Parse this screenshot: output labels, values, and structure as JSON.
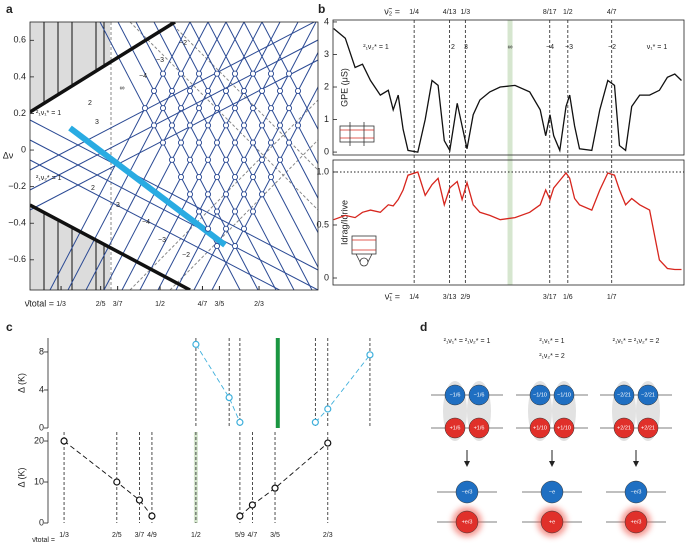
{
  "panels": [
    "a",
    "b",
    "c",
    "d"
  ],
  "chart_data": [
    {
      "type": "phase",
      "ylabel": "Δν",
      "xlabel": "ν̄total =",
      "xlim": [
        0.281,
        0.766
      ],
      "xticks": [
        {
          "value": 0.3333,
          "label": "1/3"
        },
        {
          "value": 0.4,
          "label": "2/5"
        },
        {
          "value": 0.4286,
          "label": "3/7"
        },
        {
          "value": 0.5,
          "label": "1/2"
        },
        {
          "value": 0.5714,
          "label": "4/7"
        },
        {
          "value": 0.6,
          "label": "3/5"
        },
        {
          "value": 0.6667,
          "label": "2/3"
        }
      ],
      "ylim": [
        -0.765,
        0.7
      ],
      "yticks": [
        0.6,
        0.4,
        0.2,
        0,
        {
          "value": -0.2,
          "label": "−0.2"
        },
        {
          "value": -0.4,
          "label": "−0.4"
        },
        {
          "value": -0.6,
          "label": "−0.6"
        }
      ],
      "annotations": [
        "−2",
        "−3",
        "−4",
        "∞",
        "2",
        "3",
        "²₁ν₁* = 1",
        "²₁ν₂* = 1",
        "2",
        "3",
        "−4",
        "−3",
        "−2"
      ]
    },
    {
      "type": "line",
      "ylabel": "GPE (μS)",
      "xlabel": "ν̃₂ =",
      "xlim": [
        0.118,
        0.689
      ],
      "xticks": [
        {
          "value": 0.25,
          "label": "1/4"
        },
        {
          "value": 0.3077,
          "label": "4/13"
        },
        {
          "value": 0.3333,
          "label": "1/3"
        },
        {
          "value": 0.4706,
          "label": "8/17"
        },
        {
          "value": 0.5,
          "label": "1/2"
        },
        {
          "value": 0.5714,
          "label": "4/7"
        }
      ],
      "ylim": [
        -0.09,
        4.06
      ],
      "yticks": [
        0,
        1,
        2,
        3,
        4
      ],
      "highlight_x": 0.406,
      "highlight_color": "#d6e6cf",
      "annotations": [
        "²₁ν₂* = 1",
        "2",
        "3",
        "∞",
        "−4",
        "−3",
        "−2",
        "ν₁* = 1"
      ],
      "x": [
        0.119,
        0.138,
        0.154,
        0.166,
        0.179,
        0.195,
        0.208,
        0.216,
        0.224,
        0.232,
        0.24,
        0.256,
        0.268,
        0.279,
        0.289,
        0.299,
        0.308,
        0.32,
        0.328,
        0.336,
        0.346,
        0.357,
        0.373,
        0.39,
        0.414,
        0.438,
        0.455,
        0.464,
        0.471,
        0.477,
        0.487,
        0.497,
        0.503,
        0.511,
        0.519,
        0.539,
        0.552,
        0.565,
        0.576,
        0.584,
        0.594,
        0.604,
        0.617,
        0.633,
        0.649,
        0.662,
        0.674,
        0.685
      ],
      "series": [
        {
          "color": "#111111",
          "values": [
            3.8,
            3.5,
            2.6,
            2.7,
            2.2,
            1.75,
            1.9,
            1.3,
            1.75,
            0.7,
            0.05,
            0,
            1.0,
            2.2,
            2.05,
            0.35,
            0.05,
            1.5,
            0.8,
            0.1,
            1.15,
            1.6,
            1.85,
            2.0,
            2.05,
            1.85,
            1.3,
            0.5,
            1.15,
            0.5,
            0.05,
            1.4,
            1.75,
            0.8,
            0.1,
            0.05,
            1.3,
            2.2,
            2.05,
            0.2,
            0.05,
            1.4,
            1.75,
            1.75,
            1.9,
            2.3,
            2.4,
            2.2
          ]
        }
      ]
    },
    {
      "type": "line",
      "ylabel": "Idrag/Idrive",
      "xlabel": "ν̃₁ =",
      "xlim": [
        0.118,
        0.689
      ],
      "xtick_labels": [
        "1/4",
        "3/13",
        "2/9",
        "3/17",
        "1/6",
        "1/7"
      ],
      "ylim": [
        -0.066,
        1.113
      ],
      "yticks": [
        0,
        0.5,
        {
          "value": 1,
          "label": "1.0"
        }
      ],
      "x": [
        0.119,
        0.138,
        0.154,
        0.166,
        0.179,
        0.195,
        0.208,
        0.216,
        0.224,
        0.232,
        0.24,
        0.256,
        0.268,
        0.279,
        0.289,
        0.299,
        0.308,
        0.32,
        0.328,
        0.336,
        0.346,
        0.357,
        0.373,
        0.39,
        0.414,
        0.438,
        0.455,
        0.464,
        0.471,
        0.477,
        0.487,
        0.497,
        0.503,
        0.511,
        0.519,
        0.539,
        0.552,
        0.565,
        0.576,
        0.584,
        0.594,
        0.604,
        0.617,
        0.633,
        0.649,
        0.662,
        0.674,
        0.685
      ],
      "series": [
        {
          "color": "#d7261e",
          "values": [
            0.55,
            0.59,
            0.57,
            0.62,
            0.64,
            0.62,
            0.69,
            0.68,
            0.74,
            0.83,
            0.97,
            1.0,
            0.78,
            0.88,
            0.94,
            0.69,
            0.85,
            0.91,
            0.74,
            0.9,
            0.69,
            0.62,
            0.59,
            0.55,
            0.57,
            0.62,
            0.69,
            0.83,
            0.74,
            0.85,
            0.92,
            0.99,
            0.94,
            0.75,
            0.69,
            0.64,
            0.83,
            0.99,
            0.97,
            0.83,
            0.69,
            0.75,
            0.69,
            0.64,
            0.17,
            0.09,
            0.08,
            0.08
          ]
        }
      ]
    },
    {
      "type": "scatter",
      "ylabel": "Δ (K)",
      "xlim": [
        0.313,
        0.758
      ],
      "ylim": [
        0,
        9.47
      ],
      "yticks": [
        0,
        4,
        8
      ],
      "highlight_x": 0.6035,
      "highlight_color": "#1a9641",
      "x": [
        0.5,
        0.542,
        0.5556,
        0.651,
        0.6667,
        0.72
      ],
      "values": [
        8.8,
        3.2,
        0.6,
        0.6,
        2.0,
        7.7
      ],
      "color": "#3fb0dc"
    },
    {
      "type": "scatter",
      "ylabel": "Δ (K)",
      "xlabel": "ν̄total =",
      "xlim": [
        0.313,
        0.758
      ],
      "ylim": [
        0,
        22.2
      ],
      "yticks": [
        0,
        10,
        20
      ],
      "xticks": [
        {
          "value": 0.3333,
          "label": "1/3"
        },
        {
          "value": 0.4,
          "label": "2/5"
        },
        {
          "value": 0.4286,
          "label": "3/7"
        },
        {
          "value": 0.4444,
          "label": "4/9"
        },
        {
          "value": 0.5,
          "label": "1/2"
        },
        {
          "value": 0.5556,
          "label": "5/9"
        },
        {
          "value": 0.5714,
          "label": "4/7"
        },
        {
          "value": 0.6,
          "label": "3/5"
        },
        {
          "value": 0.6667,
          "label": "2/3"
        }
      ],
      "highlight_x": 0.5,
      "highlight_color": "#d6e6cf",
      "x": [
        0.3333,
        0.4,
        0.4286,
        0.4444,
        0.5556,
        0.5714,
        0.6,
        0.6667
      ],
      "values": [
        20,
        10,
        5.6,
        1.7,
        1.7,
        4.4,
        8.5,
        19.5
      ],
      "color": "#111111"
    }
  ],
  "diagram": {
    "columns": [
      {
        "title": [
          "²₁ν₁* = ²₁ν₂* = 1"
        ],
        "top": [
          "−1/6",
          "−1/6",
          "+1/6",
          "+1/6"
        ],
        "bottom": [
          "−e/3",
          "+e/3"
        ]
      },
      {
        "title": [
          "²₁ν₁* = 1",
          "²₁ν₂* = 2"
        ],
        "top": [
          "−1/10",
          "−1/10",
          "+1/10",
          "+1/10"
        ],
        "bottom": [
          "−e",
          "+e"
        ]
      },
      {
        "title": [
          "²₁ν₁* = ²₁ν₂* = 2"
        ],
        "top": [
          "−2/21",
          "−2/21",
          "+2/21",
          "+2/21"
        ],
        "bottom": [
          "−e/3",
          "+e/3"
        ]
      }
    ]
  }
}
